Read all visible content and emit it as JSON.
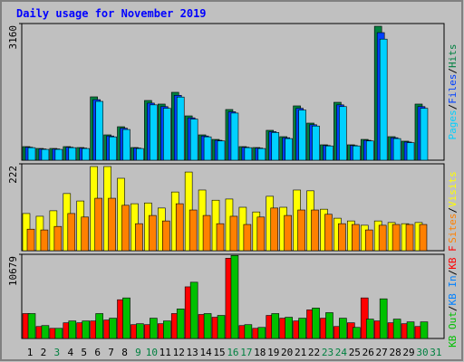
{
  "chart_data": [
    {
      "type": "bar",
      "title": "Daily usage for November 2019",
      "legend_separator": "/",
      "ylim": [
        0,
        3160
      ],
      "yticks": [
        3160
      ],
      "series": [
        {
          "name": "Hits",
          "color": "#008040",
          "values": [
            314,
            272,
            272,
            314,
            293,
            1465,
            586,
            774,
            293,
            1381,
            1298,
            1570,
            1025,
            586,
            481,
            1172,
            314,
            293,
            691,
            544,
            1256,
            858,
            356,
            1339,
            356,
            481,
            3097,
            544,
            440,
            1298,
            null
          ]
        },
        {
          "name": "Files",
          "color": "#0040ff",
          "values": [
            300,
            260,
            260,
            300,
            280,
            1400,
            560,
            740,
            280,
            1320,
            1240,
            1500,
            980,
            560,
            460,
            1120,
            300,
            280,
            660,
            520,
            1200,
            820,
            340,
            1280,
            340,
            460,
            2950,
            520,
            420,
            1240,
            null
          ]
        },
        {
          "name": "Pages",
          "color": "#00d0ff",
          "values": [
            290,
            250,
            250,
            290,
            270,
            1360,
            540,
            710,
            270,
            1280,
            1200,
            1460,
            950,
            540,
            445,
            1090,
            290,
            270,
            640,
            500,
            1160,
            790,
            330,
            1240,
            330,
            445,
            2800,
            500,
            405,
            1200,
            null
          ]
        }
      ]
    },
    {
      "type": "bar",
      "legend_separator": "/",
      "ylim": [
        0,
        222
      ],
      "yticks": [
        222
      ],
      "series": [
        {
          "name": "Visits",
          "color": "#ffff00",
          "values": [
            95,
            88,
            102,
            146,
            127,
            215,
            215,
            185,
            120,
            122,
            109,
            150,
            201,
            155,
            129,
            132,
            111,
            99,
            139,
            111,
            155,
            153,
            106,
            83,
            76,
            65,
            76,
            72,
            69,
            72,
            null
          ]
        },
        {
          "name": "Sites",
          "color": "#ff8000",
          "values": [
            55,
            53,
            62,
            95,
            86,
            134,
            134,
            116,
            69,
            90,
            76,
            120,
            104,
            90,
            69,
            88,
            67,
            86,
            109,
            90,
            104,
            104,
            93,
            69,
            67,
            53,
            65,
            67,
            67,
            67,
            null
          ]
        }
      ]
    },
    {
      "type": "bar",
      "legend_separator": "/",
      "ylim": [
        0,
        10679
      ],
      "yticks": [
        10679
      ],
      "categories": [
        "1",
        "2",
        "3",
        "4",
        "5",
        "6",
        "7",
        "8",
        "9",
        "10",
        "11",
        "12",
        "13",
        "14",
        "15",
        "16",
        "17",
        "18",
        "19",
        "20",
        "21",
        "22",
        "23",
        "24",
        "25",
        "26",
        "27",
        "28",
        "29",
        "30",
        "31"
      ],
      "category_colors": [
        "#000000",
        "#000000",
        "#008040",
        "#000000",
        "#000000",
        "#000000",
        "#000000",
        "#000000",
        "#008040",
        "#008040",
        "#000000",
        "#000000",
        "#000000",
        "#000000",
        "#000000",
        "#008040",
        "#008040",
        "#000000",
        "#000000",
        "#000000",
        "#000000",
        "#000000",
        "#008040",
        "#008040",
        "#000000",
        "#000000",
        "#000000",
        "#000000",
        "#000000",
        "#008040",
        "#008040"
      ],
      "series": [
        {
          "name": "KB F",
          "color": "#ff0000",
          "values": [
            3160,
            1520,
            1287,
            1990,
            1990,
            2223,
            2340,
            4914,
            1755,
            1755,
            1872,
            3160,
            6552,
            3042,
            2691,
            10179,
            1638,
            1287,
            2925,
            2574,
            2223,
            3627,
            2574,
            1521,
            1990,
            5148,
            2223,
            1990,
            1872,
            1521,
            null
          ]
        },
        {
          "name": "KB In",
          "color": "#0080ff",
          "values": [
            null,
            null,
            null,
            null,
            null,
            null,
            null,
            null,
            null,
            null,
            null,
            null,
            null,
            null,
            null,
            null,
            null,
            null,
            null,
            null,
            null,
            null,
            null,
            null,
            null,
            null,
            null,
            null,
            null,
            null,
            null
          ]
        },
        {
          "name": "KB Out",
          "color": "#00c000",
          "values": [
            3160,
            1638,
            1287,
            2223,
            2223,
            3160,
            2574,
            5148,
            1872,
            2574,
            2223,
            3744,
            7137,
            3160,
            2925,
            10530,
            1755,
            1404,
            3160,
            2691,
            2574,
            3861,
            3276,
            2574,
            1404,
            2457,
            5031,
            2457,
            2106,
            2106,
            null
          ]
        }
      ]
    }
  ]
}
